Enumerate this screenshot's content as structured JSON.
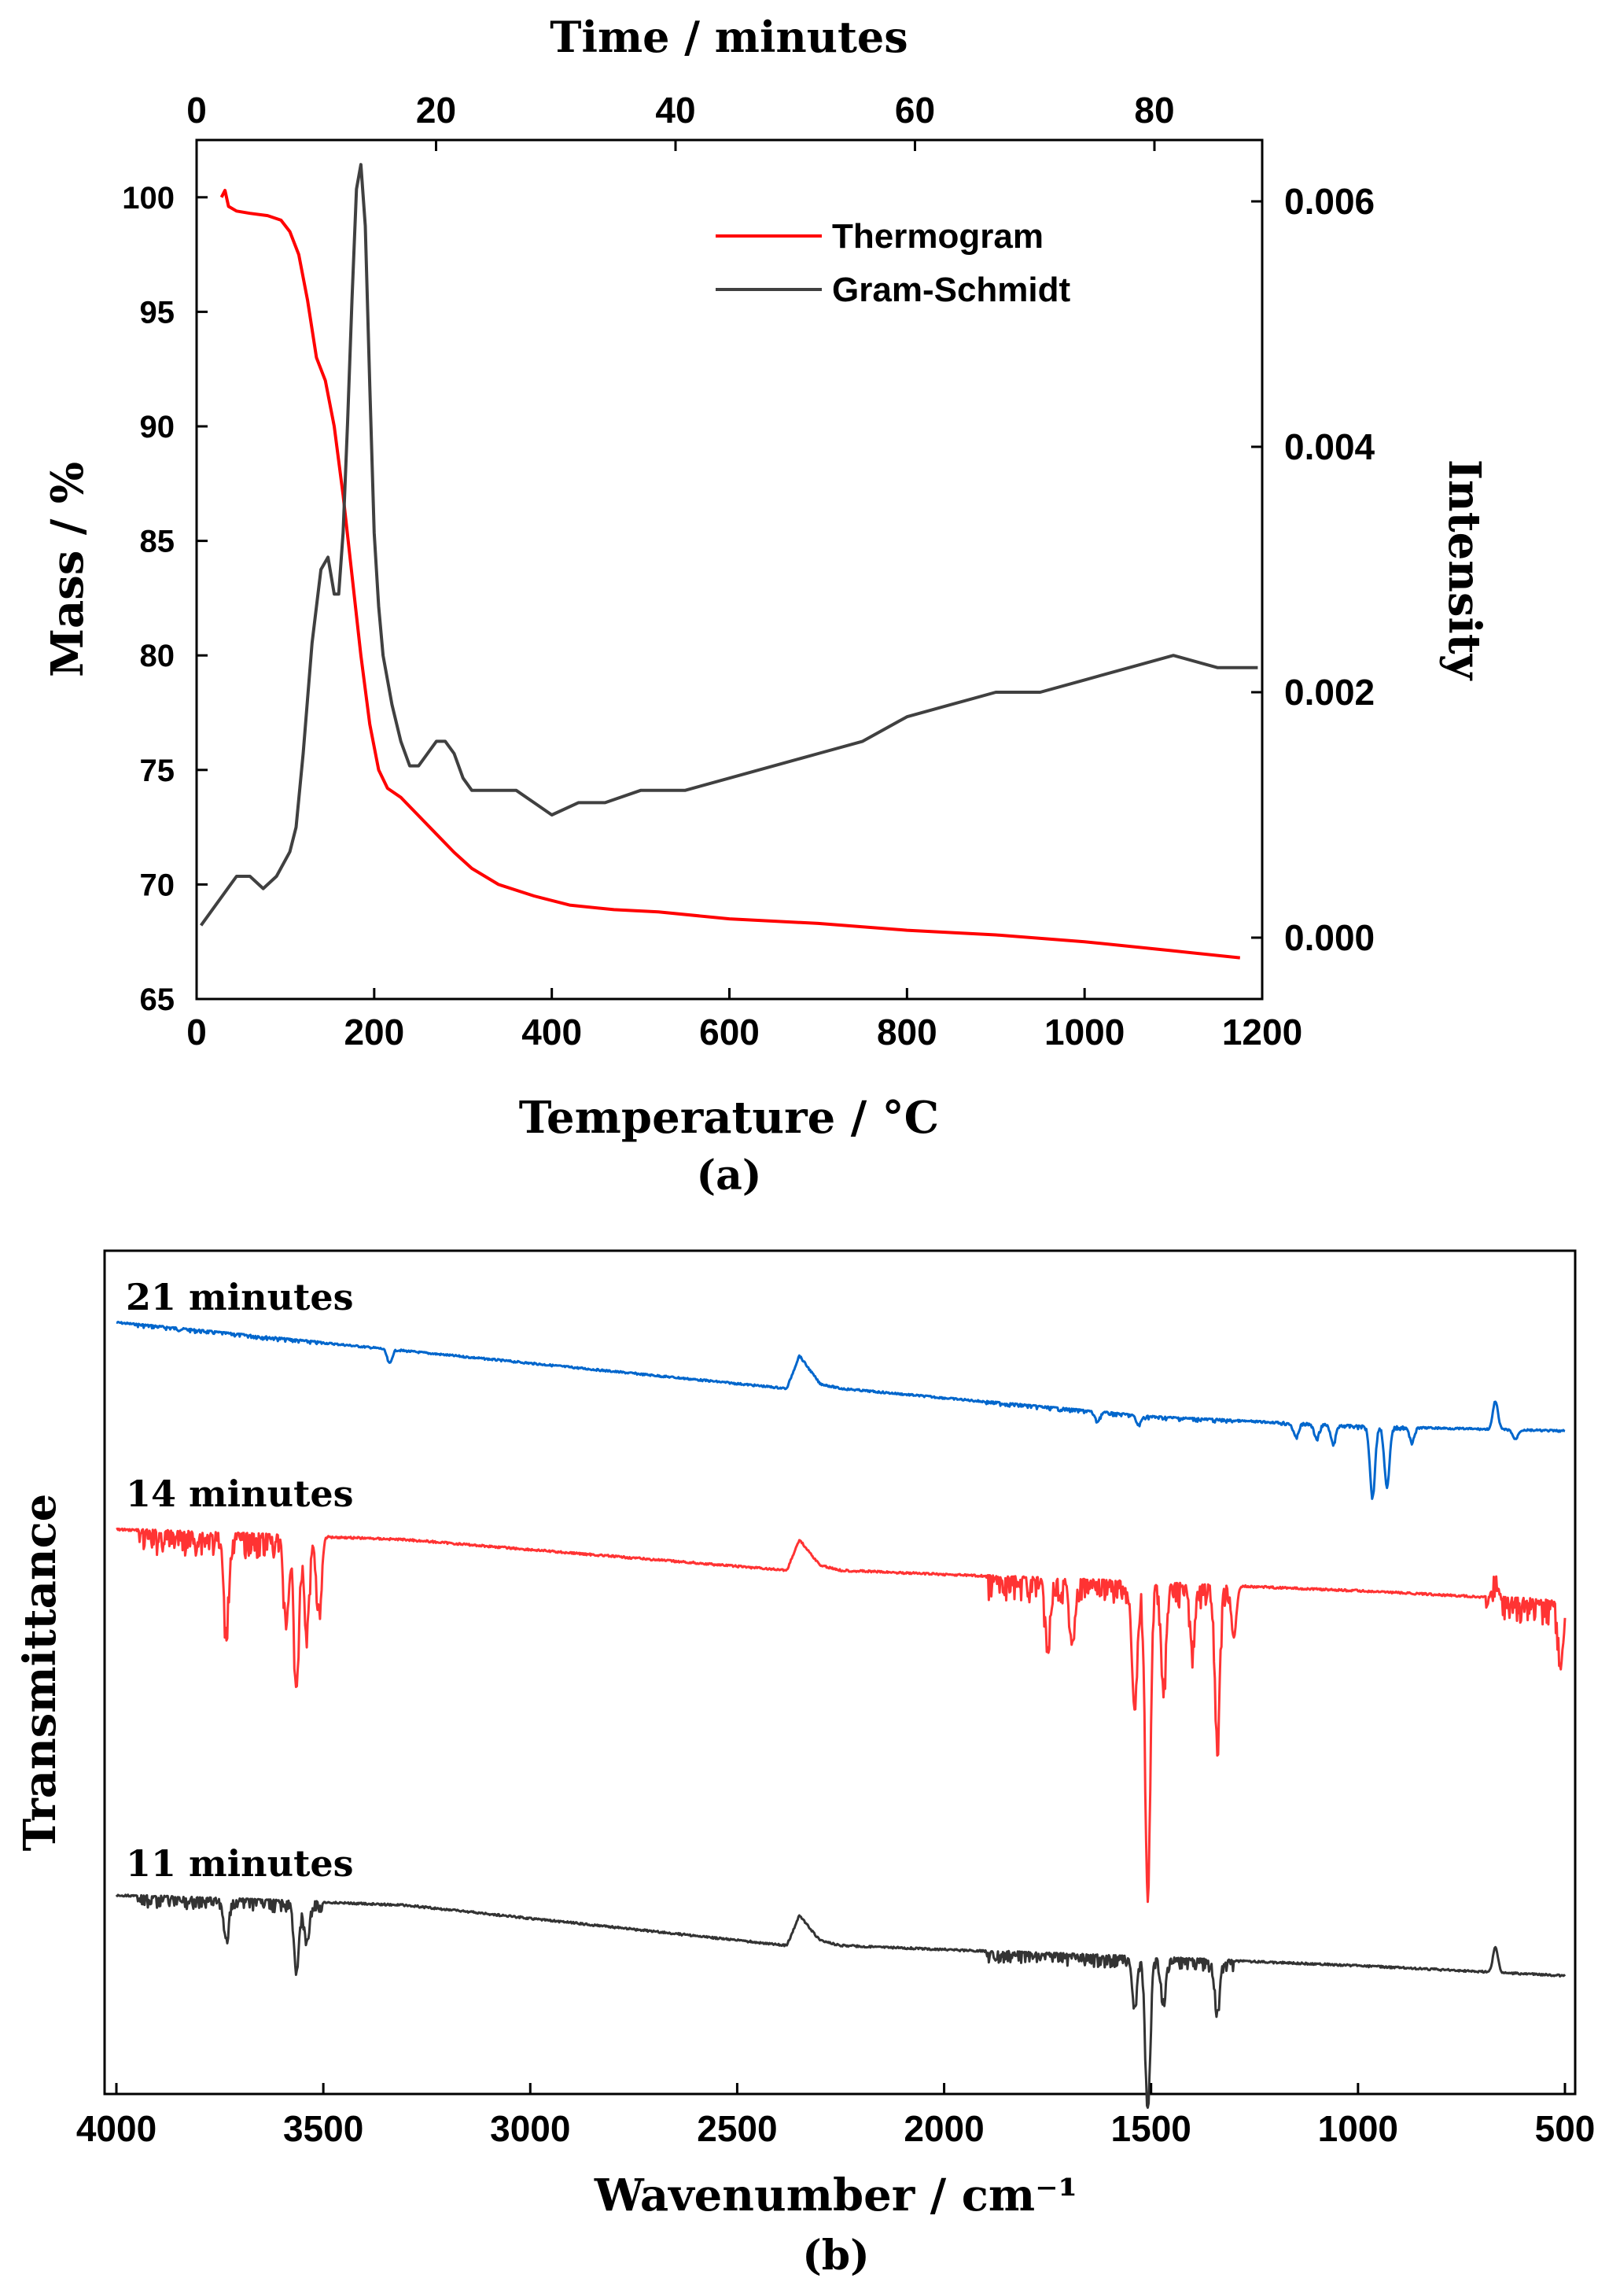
{
  "chart_data": [
    {
      "panel_label": "(a)",
      "type": "line",
      "title": "",
      "xlabel": "Temperature / °C",
      "ylabel": "Mass / %",
      "y2label": "Intensity",
      "x2label": "Time / minutes",
      "xlim": [
        0,
        1200
      ],
      "ylim": [
        65,
        102.5
      ],
      "y2lim": [
        -0.0005,
        0.0065
      ],
      "x2lim": [
        0,
        89
      ],
      "xticks": [
        "0",
        "200",
        "400",
        "600",
        "800",
        "1000",
        "1200"
      ],
      "yticks": [
        "65",
        "70",
        "75",
        "80",
        "85",
        "90",
        "95",
        "100"
      ],
      "y2ticks": [
        "0.000",
        "0.002",
        "0.004",
        "0.006"
      ],
      "x2ticks": [
        "0",
        "20",
        "40",
        "60",
        "80"
      ],
      "legend_position": "top-right",
      "series": [
        {
          "name": "Thermogram",
          "color": "#ff0000",
          "axis": "left",
          "x": [
            28,
            32,
            36,
            45,
            60,
            80,
            95,
            105,
            115,
            125,
            135,
            145,
            155,
            165,
            175,
            185,
            195,
            205,
            215,
            230,
            250,
            270,
            290,
            310,
            340,
            380,
            420,
            470,
            520,
            600,
            700,
            800,
            900,
            1000,
            1100,
            1175
          ],
          "y": [
            100.0,
            100.3,
            99.6,
            99.4,
            99.3,
            99.2,
            99.0,
            98.5,
            97.5,
            95.5,
            93.0,
            92.0,
            90.0,
            87.0,
            83.5,
            80.0,
            77.0,
            75.0,
            74.2,
            73.8,
            73.0,
            72.2,
            71.4,
            70.7,
            70.0,
            69.5,
            69.1,
            68.9,
            68.8,
            68.5,
            68.3,
            68.0,
            67.8,
            67.5,
            67.1,
            66.8
          ]
        },
        {
          "name": "Gram-Schmidt",
          "color": "#404040",
          "axis": "right",
          "x": [
            5,
            15,
            25,
            35,
            45,
            60,
            75,
            90,
            105,
            112,
            120,
            130,
            140,
            148,
            155,
            160,
            165,
            170,
            175,
            180,
            185,
            190,
            195,
            200,
            205,
            210,
            220,
            230,
            240,
            250,
            260,
            270,
            280,
            290,
            300,
            310,
            325,
            340,
            360,
            380,
            400,
            430,
            460,
            500,
            550,
            600,
            650,
            700,
            750,
            800,
            850,
            900,
            950,
            1000,
            1050,
            1100,
            1150,
            1195
          ],
          "y": [
            0.0001,
            0.0002,
            0.0003,
            0.0004,
            0.0005,
            0.0005,
            0.0004,
            0.0005,
            0.0007,
            0.0009,
            0.0015,
            0.0024,
            0.003,
            0.0031,
            0.0028,
            0.0028,
            0.0033,
            0.0042,
            0.0052,
            0.0061,
            0.0063,
            0.0058,
            0.0045,
            0.0033,
            0.0027,
            0.0023,
            0.0019,
            0.0016,
            0.0014,
            0.0014,
            0.0015,
            0.0016,
            0.0016,
            0.0015,
            0.0013,
            0.0012,
            0.0012,
            0.0012,
            0.0012,
            0.0011,
            0.001,
            0.0011,
            0.0011,
            0.0012,
            0.0012,
            0.0013,
            0.0014,
            0.0015,
            0.0016,
            0.0018,
            0.0019,
            0.002,
            0.002,
            0.0021,
            0.0022,
            0.0023,
            0.0022,
            0.0022
          ]
        }
      ]
    },
    {
      "panel_label": "(b)",
      "type": "line",
      "title": "",
      "xlabel": "Wavenumber / cm⁻¹",
      "ylabel": "Transmittance",
      "xlim": [
        4000,
        500
      ],
      "xticks": [
        "4000",
        "3500",
        "3000",
        "2500",
        "2000",
        "1500",
        "1000",
        "500"
      ],
      "series": [
        {
          "name": "21 minutes",
          "color": "#0066cc",
          "baseline": [
            {
              "x": 4000,
              "y": 1.0
            },
            {
              "x": 2380,
              "y": 0.86
            },
            {
              "x": 2350,
              "y": 0.93
            },
            {
              "x": 2300,
              "y": 0.87
            },
            {
              "x": 2250,
              "y": 0.86
            },
            {
              "x": 1500,
              "y": 0.8
            },
            {
              "x": 1000,
              "y": 0.78
            },
            {
              "x": 500,
              "y": 0.77
            }
          ],
          "peaks": [
            {
              "x": 3340,
              "depth": 0.03
            },
            {
              "x": 1630,
              "depth": 0.02
            },
            {
              "x": 1530,
              "depth": 0.02
            },
            {
              "x": 1150,
              "depth": 0.03
            },
            {
              "x": 1100,
              "depth": 0.03
            },
            {
              "x": 1060,
              "depth": 0.04
            },
            {
              "x": 965,
              "depth": 0.15
            },
            {
              "x": 930,
              "depth": 0.13
            },
            {
              "x": 870,
              "depth": 0.03
            },
            {
              "x": 620,
              "depth": 0.02
            },
            {
              "x": 668,
              "depth": -0.06
            }
          ]
        },
        {
          "name": "14 minutes",
          "color": "#ff3333",
          "baseline": [
            {
              "x": 4000,
              "y": 1.0
            },
            {
              "x": 3300,
              "y": 0.98
            },
            {
              "x": 2380,
              "y": 0.92
            },
            {
              "x": 2350,
              "y": 0.98
            },
            {
              "x": 2300,
              "y": 0.93
            },
            {
              "x": 2250,
              "y": 0.92
            },
            {
              "x": 1000,
              "y": 0.88
            },
            {
              "x": 500,
              "y": 0.86
            }
          ],
          "peaks": [
            {
              "x": 3735,
              "depth": 0.18
            },
            {
              "x": 3590,
              "depth": 0.16
            },
            {
              "x": 3565,
              "depth": 0.3
            },
            {
              "x": 3540,
              "depth": 0.18
            },
            {
              "x": 3510,
              "depth": 0.14
            },
            {
              "x": 1750,
              "depth": 0.12
            },
            {
              "x": 1690,
              "depth": 0.12
            },
            {
              "x": 1540,
              "depth": 0.25
            },
            {
              "x": 1508,
              "depth": 0.62
            },
            {
              "x": 1470,
              "depth": 0.2
            },
            {
              "x": 1400,
              "depth": 0.12
            },
            {
              "x": 1340,
              "depth": 0.3
            },
            {
              "x": 1300,
              "depth": 0.1
            },
            {
              "x": 668,
              "depth": -0.05
            },
            {
              "x": 510,
              "depth": 0.12
            }
          ]
        },
        {
          "name": "11 minutes",
          "color": "#333333",
          "baseline": [
            {
              "x": 4000,
              "y": 1.0
            },
            {
              "x": 3300,
              "y": 0.98
            },
            {
              "x": 2380,
              "y": 0.9
            },
            {
              "x": 2350,
              "y": 0.96
            },
            {
              "x": 2300,
              "y": 0.91
            },
            {
              "x": 2250,
              "y": 0.9
            },
            {
              "x": 1000,
              "y": 0.86
            },
            {
              "x": 500,
              "y": 0.84
            }
          ],
          "peaks": [
            {
              "x": 3735,
              "depth": 0.08
            },
            {
              "x": 3565,
              "depth": 0.14
            },
            {
              "x": 3540,
              "depth": 0.08
            },
            {
              "x": 1540,
              "depth": 0.1
            },
            {
              "x": 1508,
              "depth": 0.3
            },
            {
              "x": 1470,
              "depth": 0.08
            },
            {
              "x": 1340,
              "depth": 0.1
            },
            {
              "x": 668,
              "depth": -0.05
            }
          ]
        }
      ]
    }
  ]
}
